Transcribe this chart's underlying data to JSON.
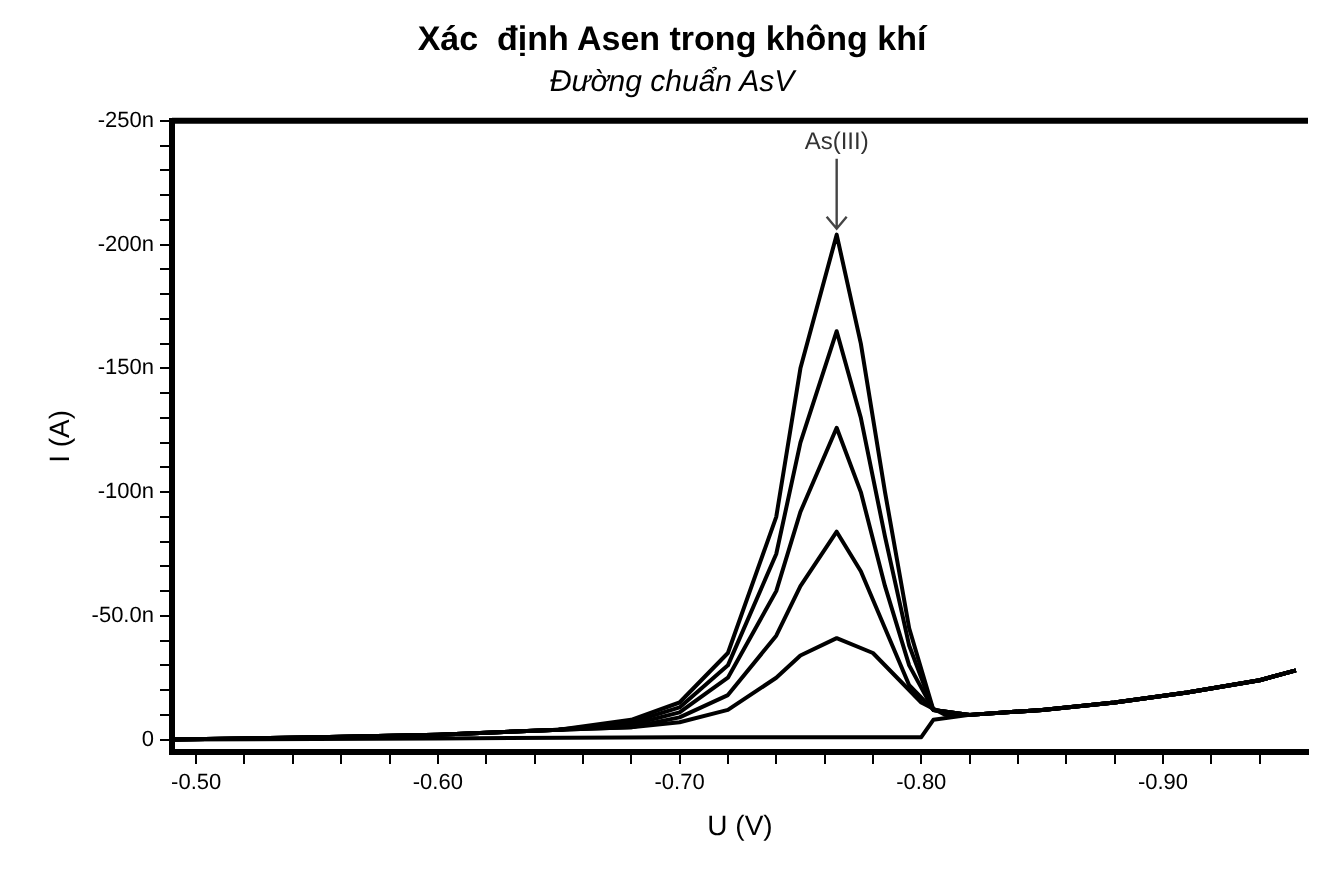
{
  "chart_data": {
    "type": "line",
    "title": "Xác  định Asen trong không khí",
    "subtitle": "Đường chuẩn AsV",
    "xlabel": "U (V)",
    "ylabel": "I (A)",
    "xlim": [
      -0.49,
      -0.96
    ],
    "xticks": [
      {
        "value": -0.5,
        "label": "-0.50"
      },
      {
        "value": -0.52,
        "label": null
      },
      {
        "value": -0.54,
        "label": null
      },
      {
        "value": -0.56,
        "label": null
      },
      {
        "value": -0.58,
        "label": null
      },
      {
        "value": -0.6,
        "label": "-0.60"
      },
      {
        "value": -0.62,
        "label": null
      },
      {
        "value": -0.64,
        "label": null
      },
      {
        "value": -0.66,
        "label": null
      },
      {
        "value": -0.68,
        "label": null
      },
      {
        "value": -0.7,
        "label": "-0.70"
      },
      {
        "value": -0.72,
        "label": null
      },
      {
        "value": -0.74,
        "label": null
      },
      {
        "value": -0.76,
        "label": null
      },
      {
        "value": -0.78,
        "label": null
      },
      {
        "value": -0.8,
        "label": "-0.80"
      },
      {
        "value": -0.82,
        "label": null
      },
      {
        "value": -0.84,
        "label": null
      },
      {
        "value": -0.86,
        "label": null
      },
      {
        "value": -0.88,
        "label": null
      },
      {
        "value": -0.9,
        "label": "-0.90"
      },
      {
        "value": -0.92,
        "label": null
      },
      {
        "value": -0.94,
        "label": null
      }
    ],
    "ylim": [
      5,
      -250
    ],
    "yticks": [
      {
        "value": 0,
        "label": "0"
      },
      {
        "value": -10,
        "label": null
      },
      {
        "value": -20,
        "label": null
      },
      {
        "value": -30,
        "label": null
      },
      {
        "value": -40,
        "label": null
      },
      {
        "value": -50,
        "label": "-50.0n"
      },
      {
        "value": -60,
        "label": null
      },
      {
        "value": -70,
        "label": null
      },
      {
        "value": -80,
        "label": null
      },
      {
        "value": -90,
        "label": null
      },
      {
        "value": -100,
        "label": "-100n"
      },
      {
        "value": -110,
        "label": null
      },
      {
        "value": -120,
        "label": null
      },
      {
        "value": -130,
        "label": null
      },
      {
        "value": -140,
        "label": null
      },
      {
        "value": -150,
        "label": "-150n"
      },
      {
        "value": -160,
        "label": null
      },
      {
        "value": -170,
        "label": null
      },
      {
        "value": -180,
        "label": null
      },
      {
        "value": -190,
        "label": null
      },
      {
        "value": -200,
        "label": "-200n"
      },
      {
        "value": -210,
        "label": null
      },
      {
        "value": -220,
        "label": null
      },
      {
        "value": -230,
        "label": null
      },
      {
        "value": -240,
        "label": null
      },
      {
        "value": -250,
        "label": "-250n"
      }
    ],
    "grid": false,
    "legend": false,
    "marker": "none",
    "line_style": "solid",
    "annotations": [
      {
        "text": "As(III)",
        "x": -0.765,
        "y": -204
      }
    ],
    "series": [
      {
        "color": "#000000",
        "x": [
          -0.49,
          -0.55,
          -0.6,
          -0.65,
          -0.68,
          -0.7,
          -0.72,
          -0.74,
          -0.75,
          -0.765,
          -0.775,
          -0.785,
          -0.795,
          -0.805,
          -0.82,
          -0.85,
          -0.88,
          -0.91,
          -0.94,
          -0.955
        ],
        "values": [
          0,
          -1,
          -2,
          -4,
          -8,
          -15,
          -35,
          -90,
          -150,
          -204,
          -160,
          -100,
          -45,
          -12,
          -10,
          -12,
          -15,
          -19,
          -24,
          -28
        ]
      },
      {
        "color": "#000000",
        "x": [
          -0.49,
          -0.55,
          -0.6,
          -0.65,
          -0.68,
          -0.7,
          -0.72,
          -0.74,
          -0.75,
          -0.765,
          -0.775,
          -0.785,
          -0.795,
          -0.805,
          -0.82,
          -0.85,
          -0.88,
          -0.91,
          -0.94,
          -0.955
        ],
        "values": [
          0,
          -1,
          -2,
          -4,
          -7,
          -13,
          -30,
          -75,
          -120,
          -165,
          -130,
          -82,
          -38,
          -12,
          -10,
          -12,
          -15,
          -19,
          -24,
          -28
        ]
      },
      {
        "color": "#000000",
        "x": [
          -0.49,
          -0.55,
          -0.6,
          -0.65,
          -0.68,
          -0.7,
          -0.72,
          -0.74,
          -0.75,
          -0.765,
          -0.775,
          -0.785,
          -0.795,
          -0.805,
          -0.82,
          -0.85,
          -0.88,
          -0.91,
          -0.94,
          -0.955
        ],
        "values": [
          0,
          -1,
          -2,
          -4,
          -6,
          -11,
          -25,
          -60,
          -92,
          -126,
          -100,
          -62,
          -30,
          -12,
          -10,
          -12,
          -15,
          -19,
          -24,
          -28
        ]
      },
      {
        "color": "#000000",
        "x": [
          -0.49,
          -0.55,
          -0.6,
          -0.65,
          -0.68,
          -0.7,
          -0.72,
          -0.74,
          -0.75,
          -0.765,
          -0.775,
          -0.785,
          -0.795,
          -0.805,
          -0.82,
          -0.85,
          -0.88,
          -0.91,
          -0.94,
          -0.955
        ],
        "values": [
          0,
          -1,
          -2,
          -4,
          -5,
          -9,
          -18,
          -42,
          -62,
          -84,
          -68,
          -45,
          -22,
          -12,
          -10,
          -12,
          -15,
          -19,
          -24,
          -28
        ]
      },
      {
        "color": "#000000",
        "x": [
          -0.49,
          -0.55,
          -0.6,
          -0.65,
          -0.68,
          -0.7,
          -0.72,
          -0.74,
          -0.75,
          -0.765,
          -0.78,
          -0.79,
          -0.8,
          -0.81,
          -0.82,
          -0.85,
          -0.88,
          -0.91,
          -0.94,
          -0.955
        ],
        "values": [
          0,
          -1,
          -2,
          -4,
          -5,
          -7,
          -12,
          -25,
          -34,
          -41,
          -35,
          -25,
          -15,
          -10,
          -10,
          -12,
          -15,
          -19,
          -24,
          -28
        ]
      },
      {
        "color": "#000000",
        "x": [
          -0.49,
          -0.6,
          -0.7,
          -0.8,
          -0.805,
          -0.82,
          -0.85,
          -0.88,
          -0.91,
          -0.94,
          -0.955
        ],
        "values": [
          0,
          -0.5,
          -1,
          -1,
          -8,
          -10,
          -12,
          -15,
          -19,
          -24,
          -28
        ]
      }
    ]
  }
}
